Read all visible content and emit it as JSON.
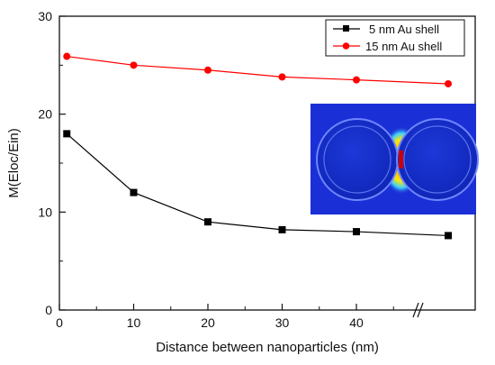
{
  "chart_data": {
    "type": "line",
    "title": "",
    "xlabel": "Distance between nanoparticles (nm)",
    "ylabel": "M(Eloc/Ein)",
    "x_ticks": [
      "0",
      "10",
      "20",
      "30",
      "40"
    ],
    "y_ticks": [
      "0",
      "10",
      "20",
      "30"
    ],
    "ylim": [
      0,
      30
    ],
    "axis_break": "after 40 nm",
    "legend_position": "top-right",
    "grid": false,
    "series": [
      {
        "name": "5 nm Au shell",
        "color": "#000000",
        "marker": "square",
        "x": [
          1,
          10,
          20,
          30,
          40,
          "beyond break"
        ],
        "y": [
          18,
          12,
          9,
          8.2,
          8,
          7.6
        ]
      },
      {
        "name": "15 nm Au shell",
        "color": "#ff0000",
        "marker": "circle",
        "x": [
          1,
          10,
          20,
          30,
          40,
          "beyond break"
        ],
        "y": [
          25.9,
          25,
          24.5,
          23.8,
          23.5,
          23.1
        ]
      }
    ],
    "inset": {
      "description": "field-map",
      "colors": [
        "#1a2fd6",
        "#ff2a00",
        "#ffd400"
      ]
    }
  }
}
